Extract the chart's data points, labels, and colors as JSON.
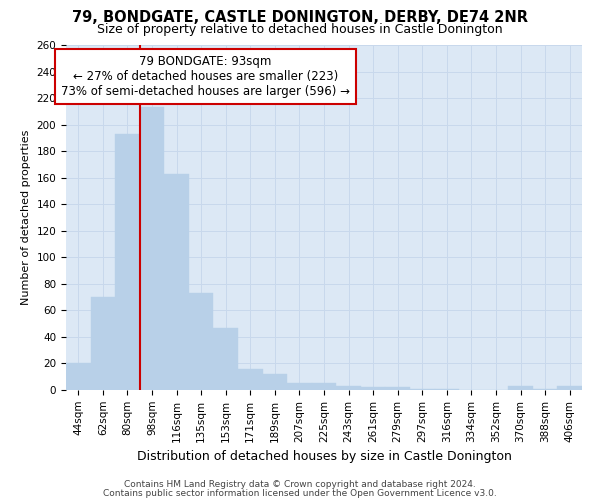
{
  "title1": "79, BONDGATE, CASTLE DONINGTON, DERBY, DE74 2NR",
  "title2": "Size of property relative to detached houses in Castle Donington",
  "xlabel": "Distribution of detached houses by size in Castle Donington",
  "ylabel": "Number of detached properties",
  "categories": [
    "44sqm",
    "62sqm",
    "80sqm",
    "98sqm",
    "116sqm",
    "135sqm",
    "153sqm",
    "171sqm",
    "189sqm",
    "207sqm",
    "225sqm",
    "243sqm",
    "261sqm",
    "279sqm",
    "297sqm",
    "316sqm",
    "334sqm",
    "352sqm",
    "370sqm",
    "388sqm",
    "406sqm"
  ],
  "values": [
    20,
    70,
    193,
    213,
    163,
    73,
    47,
    16,
    12,
    5,
    5,
    3,
    2,
    2,
    1,
    1,
    0,
    0,
    3,
    1,
    3
  ],
  "bar_color": "#b8d0e8",
  "bar_edge_color": "#b8d0e8",
  "grid_color": "#c8d8ec",
  "vline_color": "#cc0000",
  "annotation_text": "79 BONDGATE: 93sqm\n← 27% of detached houses are smaller (223)\n73% of semi-detached houses are larger (596) →",
  "annotation_box_color": "white",
  "annotation_box_edge": "#cc0000",
  "footer1": "Contains HM Land Registry data © Crown copyright and database right 2024.",
  "footer2": "Contains public sector information licensed under the Open Government Licence v3.0.",
  "ylim": [
    0,
    260
  ],
  "yticks": [
    0,
    20,
    40,
    60,
    80,
    100,
    120,
    140,
    160,
    180,
    200,
    220,
    240,
    260
  ],
  "bg_color": "#dce8f5",
  "title1_fontsize": 10.5,
  "title2_fontsize": 9,
  "ylabel_fontsize": 8,
  "xlabel_fontsize": 9,
  "tick_fontsize": 7.5,
  "footer_fontsize": 6.5,
  "annotation_fontsize": 8.5
}
